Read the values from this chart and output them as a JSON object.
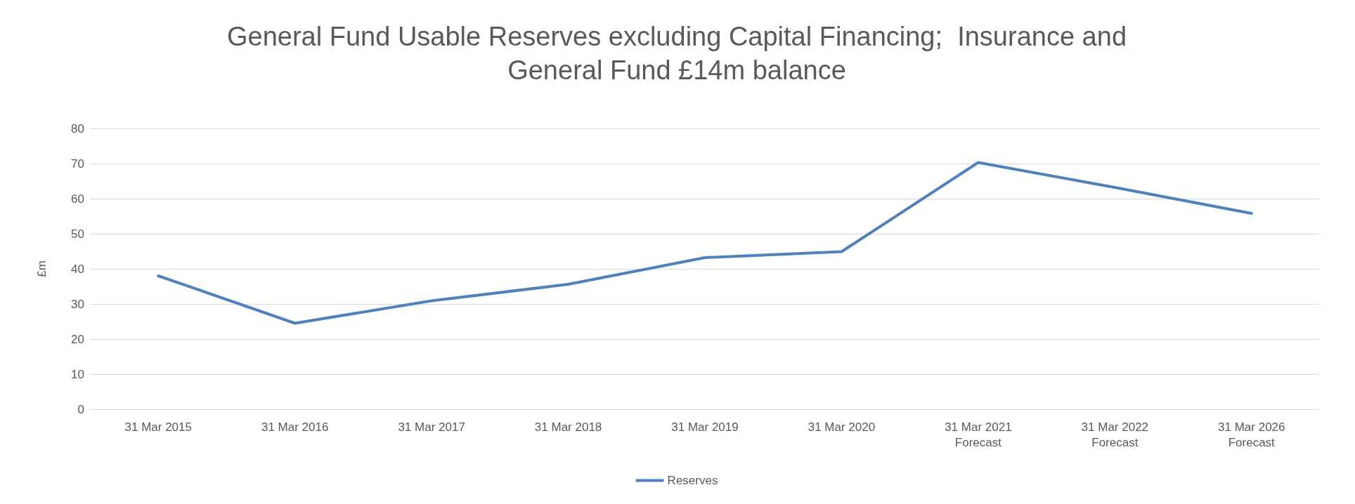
{
  "chart_data": {
    "type": "line",
    "title": "General Fund Usable Reserves excluding Capital Financing;  Insurance and\nGeneral Fund £14m balance",
    "ylabel": "£m",
    "categories": [
      "31 Mar 2015",
      "31 Mar 2016",
      "31 Mar 2017",
      "31 Mar 2018",
      "31 Mar 2019",
      "31 Mar 2020",
      "31 Mar 2021\nForecast",
      "31 Mar 2022\nForecast",
      "31 Mar 2026\nForecast"
    ],
    "series": [
      {
        "name": "Reserves",
        "color": "#4f81bd",
        "values": [
          38,
          24.5,
          30.9,
          35.6,
          43.2,
          44.9,
          70.3,
          63.2,
          55.8
        ]
      }
    ],
    "ylim": [
      0,
      80
    ],
    "yticks": [
      0,
      10,
      20,
      30,
      40,
      50,
      60,
      70,
      80
    ],
    "grid": "y",
    "legend": "bottom",
    "marker": "none",
    "line_style": "solid"
  }
}
